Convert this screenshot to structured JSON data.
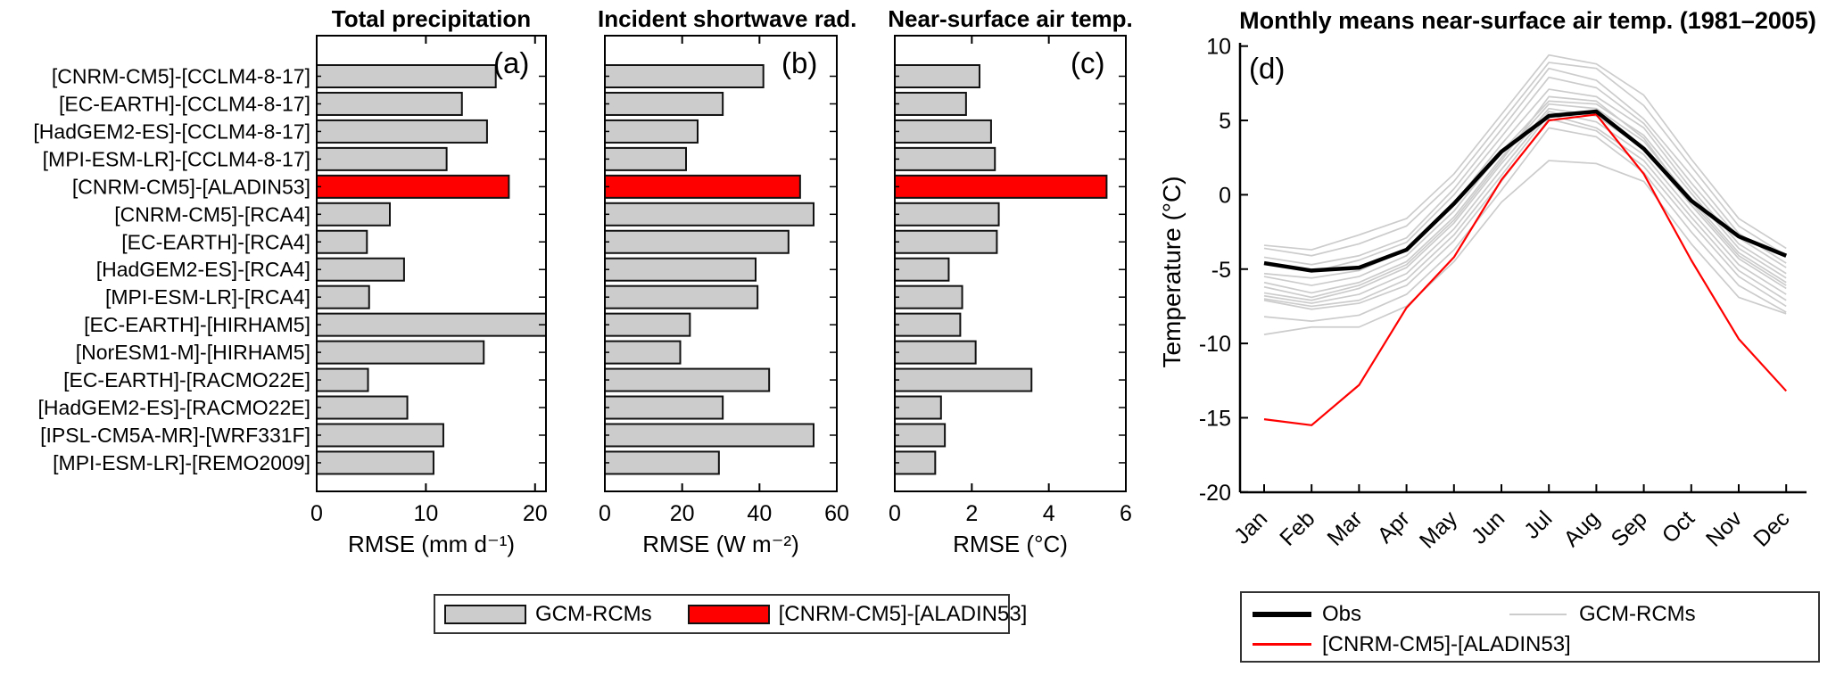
{
  "colors": {
    "bar_fill": "#cccccc",
    "bar_edge": "#111111",
    "highlight": "#ff0000",
    "obs_line": "#000000",
    "gcm_line": "#cccccc"
  },
  "models": [
    "[CNRM-CM5]-[CCLM4-8-17]",
    "[EC-EARTH]-[CCLM4-8-17]",
    "[HadGEM2-ES]-[CCLM4-8-17]",
    "[MPI-ESM-LR]-[CCLM4-8-17]",
    "[CNRM-CM5]-[ALADIN53]",
    "[CNRM-CM5]-[RCA4]",
    "[EC-EARTH]-[RCA4]",
    "[HadGEM2-ES]-[RCA4]",
    "[MPI-ESM-LR]-[RCA4]",
    "[EC-EARTH]-[HIRHAM5]",
    "[NorESM1-M]-[HIRHAM5]",
    "[EC-EARTH]-[RACMO22E]",
    "[HadGEM2-ES]-[RACMO22E]",
    "[IPSL-CM5A-MR]-[WRF331F]",
    "[MPI-ESM-LR]-[REMO2009]"
  ],
  "chart_data": [
    {
      "type": "bar",
      "orientation": "horizontal",
      "panel_letter": "(a)",
      "title": "Total precipitation",
      "xlabel": "RMSE (mm d⁻¹)",
      "xlim": [
        0,
        21
      ],
      "xticks": [
        0,
        10,
        20
      ],
      "highlight_index": 4,
      "categories": [
        "[CNRM-CM5]-[CCLM4-8-17]",
        "[EC-EARTH]-[CCLM4-8-17]",
        "[HadGEM2-ES]-[CCLM4-8-17]",
        "[MPI-ESM-LR]-[CCLM4-8-17]",
        "[CNRM-CM5]-[ALADIN53]",
        "[CNRM-CM5]-[RCA4]",
        "[EC-EARTH]-[RCA4]",
        "[HadGEM2-ES]-[RCA4]",
        "[MPI-ESM-LR]-[RCA4]",
        "[EC-EARTH]-[HIRHAM5]",
        "[NorESM1-M]-[HIRHAM5]",
        "[EC-EARTH]-[RACMO22E]",
        "[HadGEM2-ES]-[RACMO22E]",
        "[IPSL-CM5A-MR]-[WRF331F]",
        "[MPI-ESM-LR]-[REMO2009]"
      ],
      "values": [
        16.4,
        13.3,
        15.6,
        11.9,
        17.6,
        6.7,
        4.6,
        8.0,
        4.8,
        21.2,
        15.3,
        4.7,
        8.3,
        11.6,
        10.7
      ]
    },
    {
      "type": "bar",
      "orientation": "horizontal",
      "panel_letter": "(b)",
      "title": "Incident shortwave rad.",
      "xlabel": "RMSE (W m⁻²)",
      "xlim": [
        0,
        60
      ],
      "xticks": [
        0,
        20,
        40,
        60
      ],
      "highlight_index": 4,
      "categories": [
        "[CNRM-CM5]-[CCLM4-8-17]",
        "[EC-EARTH]-[CCLM4-8-17]",
        "[HadGEM2-ES]-[CCLM4-8-17]",
        "[MPI-ESM-LR]-[CCLM4-8-17]",
        "[CNRM-CM5]-[ALADIN53]",
        "[CNRM-CM5]-[RCA4]",
        "[EC-EARTH]-[RCA4]",
        "[HadGEM2-ES]-[RCA4]",
        "[MPI-ESM-LR]-[RCA4]",
        "[EC-EARTH]-[HIRHAM5]",
        "[NorESM1-M]-[HIRHAM5]",
        "[EC-EARTH]-[RACMO22E]",
        "[HadGEM2-ES]-[RACMO22E]",
        "[IPSL-CM5A-MR]-[WRF331F]",
        "[MPI-ESM-LR]-[REMO2009]"
      ],
      "values": [
        41.0,
        30.5,
        24.0,
        21.0,
        50.5,
        54.0,
        47.5,
        39.0,
        39.5,
        22.0,
        19.5,
        42.5,
        30.5,
        54.0,
        29.5
      ]
    },
    {
      "type": "bar",
      "orientation": "horizontal",
      "panel_letter": "(c)",
      "title": "Near-surface air temp.",
      "xlabel": "RMSE (°C)",
      "xlim": [
        0,
        6
      ],
      "xticks": [
        0,
        2,
        4,
        6
      ],
      "highlight_index": 4,
      "categories": [
        "[CNRM-CM5]-[CCLM4-8-17]",
        "[EC-EARTH]-[CCLM4-8-17]",
        "[HadGEM2-ES]-[CCLM4-8-17]",
        "[MPI-ESM-LR]-[CCLM4-8-17]",
        "[CNRM-CM5]-[ALADIN53]",
        "[CNRM-CM5]-[RCA4]",
        "[EC-EARTH]-[RCA4]",
        "[HadGEM2-ES]-[RCA4]",
        "[MPI-ESM-LR]-[RCA4]",
        "[EC-EARTH]-[HIRHAM5]",
        "[NorESM1-M]-[HIRHAM5]",
        "[EC-EARTH]-[RACMO22E]",
        "[HadGEM2-ES]-[RACMO22E]",
        "[IPSL-CM5A-MR]-[WRF331F]",
        "[MPI-ESM-LR]-[REMO2009]"
      ],
      "values": [
        2.2,
        1.85,
        2.5,
        2.6,
        5.5,
        2.7,
        2.65,
        1.4,
        1.75,
        1.7,
        2.1,
        3.55,
        1.2,
        1.3,
        1.05
      ]
    },
    {
      "type": "line",
      "panel_letter": "(d)",
      "title": "Monthly means near-surface air temp. (1981–2005)",
      "ylabel": "Temperature (°C)",
      "ylim": [
        -20,
        10
      ],
      "yticks": [
        10,
        5,
        0,
        -5,
        -10,
        -15,
        -20
      ],
      "x": [
        "Jan",
        "Feb",
        "Mar",
        "Apr",
        "May",
        "Jun",
        "Jul",
        "Aug",
        "Sep",
        "Oct",
        "Nov",
        "Dec"
      ],
      "legend_position": "below",
      "series": [
        {
          "name": "Obs",
          "color": "#000000",
          "width": 4.5,
          "values": [
            -4.6,
            -5.1,
            -4.9,
            -3.7,
            -0.6,
            2.9,
            5.3,
            5.6,
            3.1,
            -0.4,
            -2.8,
            -4.1
          ]
        },
        {
          "name": "[CNRM-CM5]-[ALADIN53]",
          "color": "#ff0000",
          "width": 2.2,
          "values": [
            -15.1,
            -15.5,
            -12.8,
            -7.6,
            -4.2,
            1.0,
            5.0,
            5.4,
            1.4,
            -4.4,
            -9.7,
            -13.2
          ]
        },
        {
          "name": "GCM-RCMs",
          "color": "#cccccc",
          "width": 1.7,
          "values_multi": [
            [
              -3.4,
              -3.7,
              -2.7,
              -1.6,
              1.4,
              5.4,
              9.4,
              8.8,
              6.7,
              2.4,
              -1.6,
              -3.6
            ],
            [
              -3.6,
              -4.1,
              -3.3,
              -2.1,
              0.9,
              4.9,
              8.9,
              8.5,
              6.0,
              1.9,
              -2.1,
              -4.1
            ],
            [
              -4.2,
              -4.7,
              -4.1,
              -2.9,
              0.4,
              4.4,
              8.5,
              7.7,
              5.1,
              1.3,
              -2.6,
              -4.6
            ],
            [
              -4.6,
              -5.2,
              -4.4,
              -3.2,
              0.0,
              3.9,
              7.9,
              7.2,
              4.8,
              0.8,
              -2.9,
              -4.9
            ],
            [
              -5.3,
              -5.6,
              -5.1,
              -3.7,
              -0.6,
              3.4,
              7.1,
              6.6,
              4.5,
              0.4,
              -3.3,
              -5.3
            ],
            [
              -5.5,
              -6.1,
              -5.5,
              -4.1,
              -1.1,
              2.9,
              6.3,
              6.1,
              4.0,
              0.1,
              -3.6,
              -5.6
            ],
            [
              -5.9,
              -6.6,
              -5.9,
              -4.5,
              -1.5,
              2.5,
              6.1,
              5.8,
              3.6,
              -0.3,
              -3.9,
              -5.9
            ],
            [
              -6.2,
              -6.9,
              -6.1,
              -4.7,
              -1.7,
              2.3,
              6.6,
              6.3,
              3.8,
              -0.5,
              -4.1,
              -6.1
            ],
            [
              -6.6,
              -7.1,
              -6.3,
              -4.9,
              -1.9,
              2.1,
              5.8,
              5.3,
              3.1,
              -0.7,
              -4.3,
              -6.3
            ],
            [
              -6.8,
              -7.3,
              -6.7,
              -5.3,
              -2.3,
              1.7,
              5.6,
              4.9,
              2.7,
              -1.1,
              -4.7,
              -6.7
            ],
            [
              -7.0,
              -7.5,
              -7.1,
              -5.7,
              -2.7,
              1.3,
              5.4,
              4.5,
              2.3,
              -1.5,
              -5.1,
              -7.1
            ],
            [
              -7.1,
              -7.7,
              -7.3,
              -6.1,
              -3.1,
              0.9,
              5.1,
              4.3,
              1.9,
              -1.9,
              -5.5,
              -7.5
            ],
            [
              -8.2,
              -8.5,
              -8.1,
              -6.7,
              -3.7,
              0.3,
              4.5,
              3.9,
              1.5,
              -2.5,
              -6.1,
              -7.9
            ],
            [
              -9.4,
              -8.9,
              -8.9,
              -7.5,
              -4.5,
              -0.5,
              2.3,
              2.1,
              0.9,
              -3.3,
              -6.9,
              -8.0
            ]
          ]
        }
      ]
    }
  ],
  "legend_bars": {
    "gcm_label": "GCM-RCMs",
    "highlight_label": "[CNRM-CM5]-[ALADIN53]"
  },
  "legend_lines": {
    "obs_label": "Obs",
    "highlight_label": "[CNRM-CM5]-[ALADIN53]",
    "gcm_label": "GCM-RCMs"
  }
}
